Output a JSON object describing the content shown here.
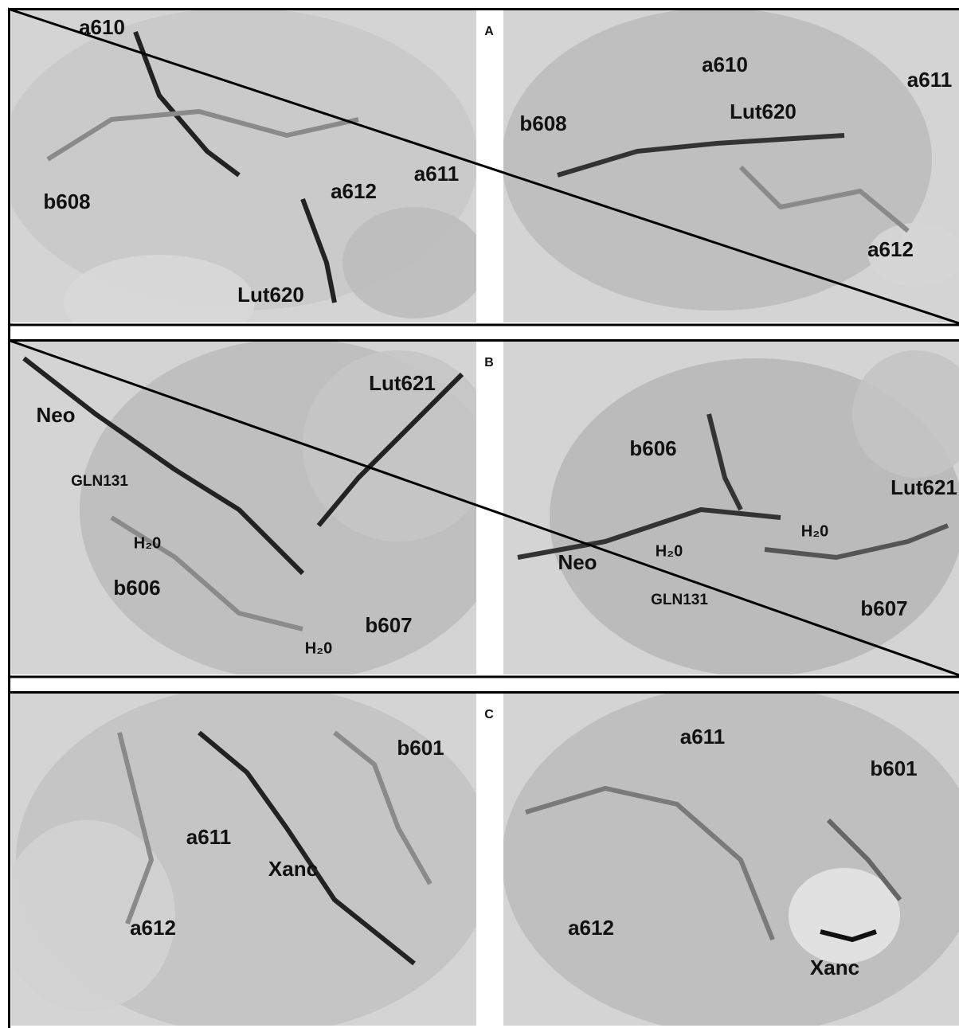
{
  "figure": {
    "panels": [
      {
        "letter": "A",
        "left": [
          "a610",
          "b608",
          "a612",
          "a611",
          "Lut620"
        ],
        "right": [
          "a610",
          "a611",
          "b608",
          "Lut620",
          "a612"
        ]
      },
      {
        "letter": "B",
        "left": [
          "Neo",
          "Lut621",
          "GLN131",
          "H₂0",
          "b606",
          "b607",
          "H₂0"
        ],
        "right": [
          "b606",
          "Lut621",
          "H₂0",
          "H₂0",
          "Neo",
          "GLN131",
          "b607"
        ]
      },
      {
        "letter": "C",
        "left": [
          "b601",
          "a611",
          "Xanc",
          "a612"
        ],
        "right": [
          "a611",
          "b601",
          "a612",
          "Xanc"
        ]
      }
    ]
  }
}
